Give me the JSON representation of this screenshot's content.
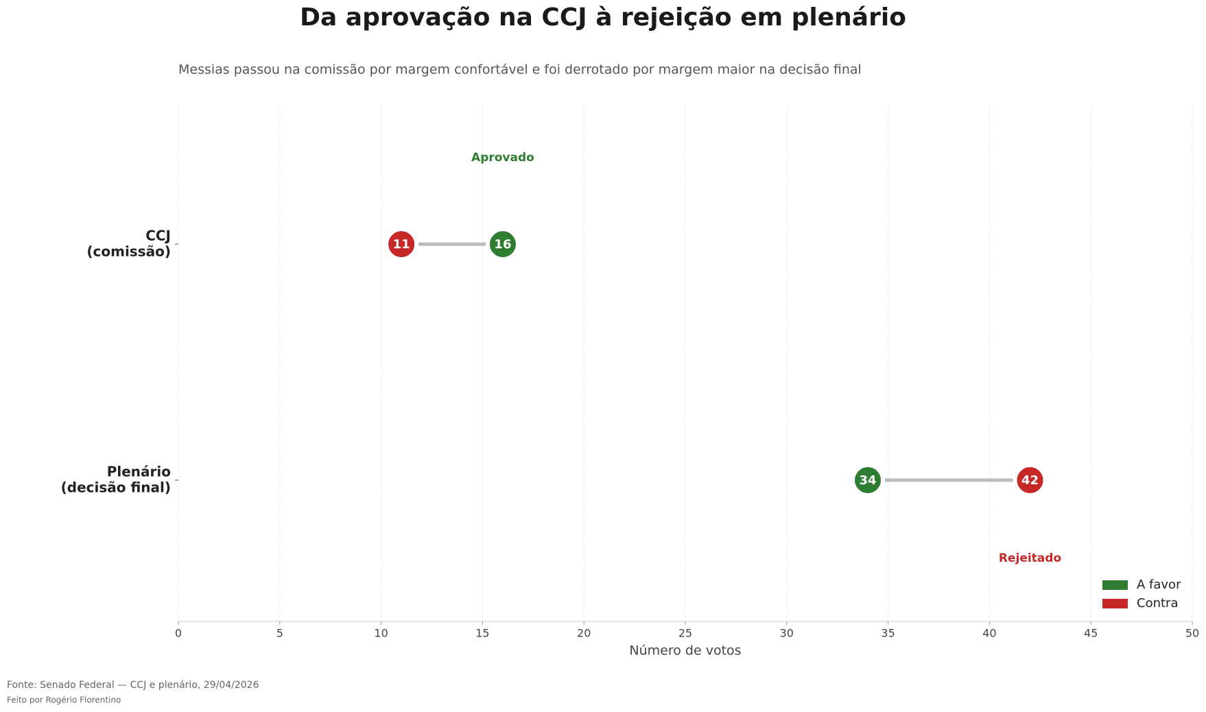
{
  "chart_data": {
    "type": "dumbbell",
    "title": "Da aprovação na CCJ à rejeição em plenário",
    "subtitle": "Messias passou na comissão por margem confortável e foi derrotado por margem maior na decisão final",
    "categories": [
      "CCJ\n(comissão)",
      "Plenário\n(decisão final)"
    ],
    "series": [
      {
        "name": "A favor",
        "color": "#2e7d32",
        "values": [
          16,
          34
        ]
      },
      {
        "name": "Contra",
        "color": "#c62828",
        "values": [
          11,
          42
        ]
      }
    ],
    "annotations": [
      {
        "text": "Aprovado",
        "color": "#2e7d32"
      },
      {
        "text": "Rejeitado",
        "color": "#c62828"
      }
    ],
    "xlabel": "Número de votos",
    "xlim": [
      0,
      50
    ],
    "xticks": [
      0,
      5,
      10,
      15,
      20,
      25,
      30,
      35,
      40,
      45,
      50
    ],
    "grid": true,
    "legend": "lower right",
    "footer": [
      "Fonte: Senado Federal — CCJ e plenário, 29/04/2026",
      "Feito por Rogério Florentino"
    ]
  }
}
